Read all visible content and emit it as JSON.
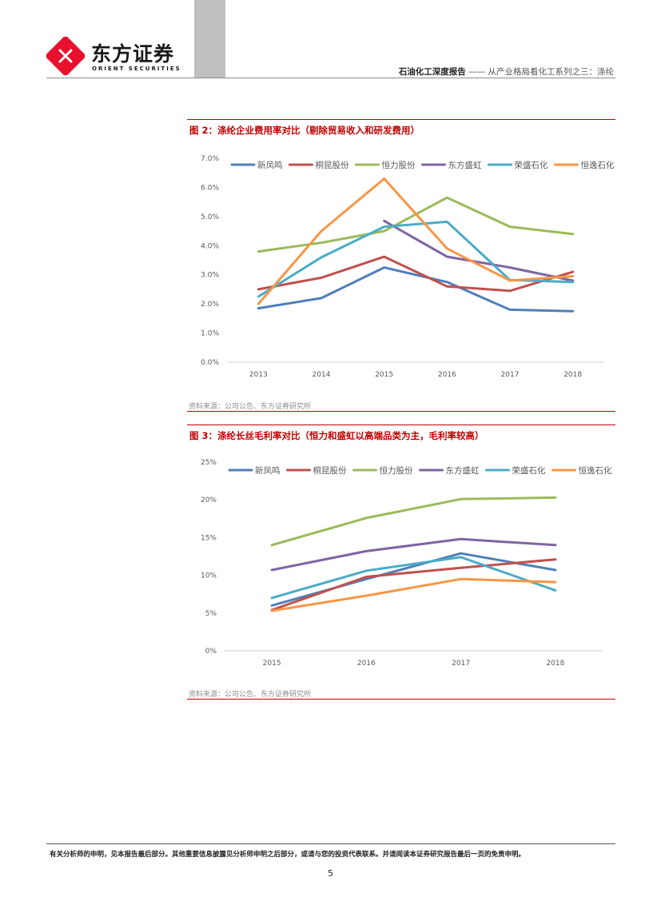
{
  "header": {
    "logo_cn": "东方证券",
    "logo_en": "ORIENT SECURITIES",
    "report_type": "石油化工深度报告",
    "separator": "——",
    "series_title": "从产业格局看化工系列之三：涤纶"
  },
  "colors": {
    "accent_red": "#c00000",
    "header_gray": "#bfbfbf"
  },
  "figures": [
    {
      "title": "图 2：涤纶企业费用率对比（剔除贸易收入和研发费用）",
      "source": "资料来源：公司公告、东方证券研究所"
    },
    {
      "title": "图 3：涤纶长丝毛利率对比（恒力和盛虹以高端品类为主，毛利率较高）",
      "source": "资料来源：公司公告、东方证券研究所"
    }
  ],
  "chart_data": [
    {
      "type": "line",
      "title": "图 2：涤纶企业费用率对比（剔除贸易收入和研发费用）",
      "x": [
        "2013",
        "2014",
        "2015",
        "2016",
        "2017",
        "2018"
      ],
      "ylim": [
        0,
        7
      ],
      "y_ticks": [
        "0.0%",
        "1.0%",
        "2.0%",
        "3.0%",
        "4.0%",
        "5.0%",
        "6.0%",
        "7.0%"
      ],
      "xlabel": "",
      "ylabel": "",
      "legend": "top",
      "series": [
        {
          "name": "新凤鸣",
          "color": "#4f7fba",
          "values": [
            1.85,
            2.2,
            3.25,
            2.75,
            1.8,
            1.75
          ]
        },
        {
          "name": "桐昆股份",
          "color": "#c0504d",
          "values": [
            2.5,
            2.9,
            3.62,
            2.6,
            2.45,
            3.1
          ]
        },
        {
          "name": "恒力股份",
          "color": "#9bbb59",
          "values": [
            3.8,
            4.1,
            4.5,
            5.65,
            4.65,
            4.4
          ]
        },
        {
          "name": "东方盛虹",
          "color": "#8064a2",
          "values": [
            null,
            null,
            4.85,
            3.62,
            3.25,
            2.8
          ]
        },
        {
          "name": "荣盛石化",
          "color": "#4bacc6",
          "values": [
            2.25,
            3.6,
            4.65,
            4.82,
            2.82,
            2.75
          ]
        },
        {
          "name": "恒逸石化",
          "color": "#f79646",
          "values": [
            2.0,
            4.5,
            6.3,
            3.9,
            2.8,
            2.95
          ]
        }
      ]
    },
    {
      "type": "line",
      "title": "图 3：涤纶长丝毛利率对比（恒力和盛虹以高端品类为主，毛利率较高）",
      "x": [
        "2015",
        "2016",
        "2017",
        "2018"
      ],
      "ylim": [
        0,
        25
      ],
      "y_ticks": [
        "0%",
        "5%",
        "10%",
        "15%",
        "20%",
        "25%"
      ],
      "xlabel": "",
      "ylabel": "",
      "legend": "top",
      "series": [
        {
          "name": "新凤鸣",
          "color": "#4f7fba",
          "values": [
            6.0,
            9.5,
            12.9,
            10.7
          ]
        },
        {
          "name": "桐昆股份",
          "color": "#c0504d",
          "values": [
            5.4,
            9.8,
            11.0,
            12.1
          ]
        },
        {
          "name": "恒力股份",
          "color": "#9bbb59",
          "values": [
            14.0,
            17.6,
            20.1,
            20.3
          ]
        },
        {
          "name": "东方盛虹",
          "color": "#8064a2",
          "values": [
            10.7,
            13.2,
            14.8,
            14.0
          ]
        },
        {
          "name": "荣盛石化",
          "color": "#4bacc6",
          "values": [
            7.0,
            10.6,
            12.4,
            8.0
          ]
        },
        {
          "name": "恒逸石化",
          "color": "#f79646",
          "values": [
            5.3,
            7.3,
            9.5,
            9.1
          ]
        }
      ]
    }
  ],
  "footer": {
    "disclaimer": "有关分析师的申明，见本报告最后部分。其他重要信息披露见分析师申明之后部分，或请与您的投资代表联系。并请阅读本证券研究报告最后一页的免责申明。",
    "page_number": "5"
  }
}
